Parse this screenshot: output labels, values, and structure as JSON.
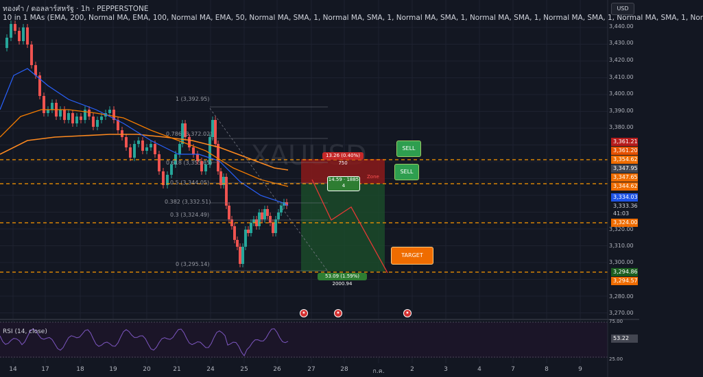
{
  "header": {
    "title": "ทองคำ / ดอลลาร์สหรัฐ · 1h · PEPPERSTONE",
    "indicator": "10 in 1 MAs (EMA, 200, Normal MA, EMA, 100, Normal MA, EMA, 50, Normal MA, SMA, 1, Normal MA, SMA, 1, Normal MA, SMA, 1, Normal MA, SMA, 1, Normal MA, SMA, 1, Normal MA, SMA, 1, Nor"
  },
  "currency_button": "USD",
  "watermark": "XAUUSD",
  "y_axis_labels": [
    "3,440.00",
    "3,430.00",
    "3,420.00",
    "3,410.00",
    "3,400.00",
    "3,390.00",
    "3,380.00",
    "3,320.00",
    "3,310.00",
    "3,300.00",
    "3,280.00",
    "3,270.00"
  ],
  "price_tags": {
    "tag1": "3,361.21",
    "tag2": "3,361.20",
    "tag3": "3,354.62",
    "tag4": "3,347.95",
    "tag5": "3,347.65",
    "tag6": "3,344.62",
    "tag7": "3,334.03",
    "tag8": "3,333.36",
    "tag9": "41:03",
    "tag10": "3,324.00",
    "tag11": "3,294.86",
    "tag12": "3,294.57"
  },
  "fib_levels": [
    "1 (3,392.95)",
    "0.786 (3,372.02)",
    "0.618 (3,355.65)",
    "0.5 (3,344.05)",
    "0.382 (3,332.51)",
    "0.3 (3,324.49)",
    "0 (3,295.14)"
  ],
  "position_labels": {
    "risk": "13.26 (0.40%) 750",
    "mid_line1": "14.59 · 1885",
    "mid_line2": "4",
    "reward": "53.09 (1.59%) 2000.94",
    "zone": "Zone"
  },
  "callouts": {
    "sell1": "SELL",
    "sell2": "SELL",
    "target": "TARGET"
  },
  "x_axis_labels": [
    "14",
    "17",
    "18",
    "19",
    "20",
    "21",
    "24",
    "25",
    "26",
    "27",
    "28",
    "ก.ค.",
    "2",
    "3",
    "4",
    "7",
    "8",
    "9"
  ],
  "rsi": {
    "label": "RSI (14, close)",
    "value": "53.22",
    "axis_top": "75.00",
    "axis_bottom": "25.00"
  },
  "colors": {
    "background": "#131722",
    "ema_slow": "#ff8a1f",
    "ema_fast": "#2962ff",
    "up_candle": "#26a69a",
    "down_candle": "#ef5350",
    "dashed_level": "#ff9800",
    "rsi_line": "#7e57c2",
    "sell_zone": "#b71c1c",
    "buy_zone": "#1b5e20"
  }
}
